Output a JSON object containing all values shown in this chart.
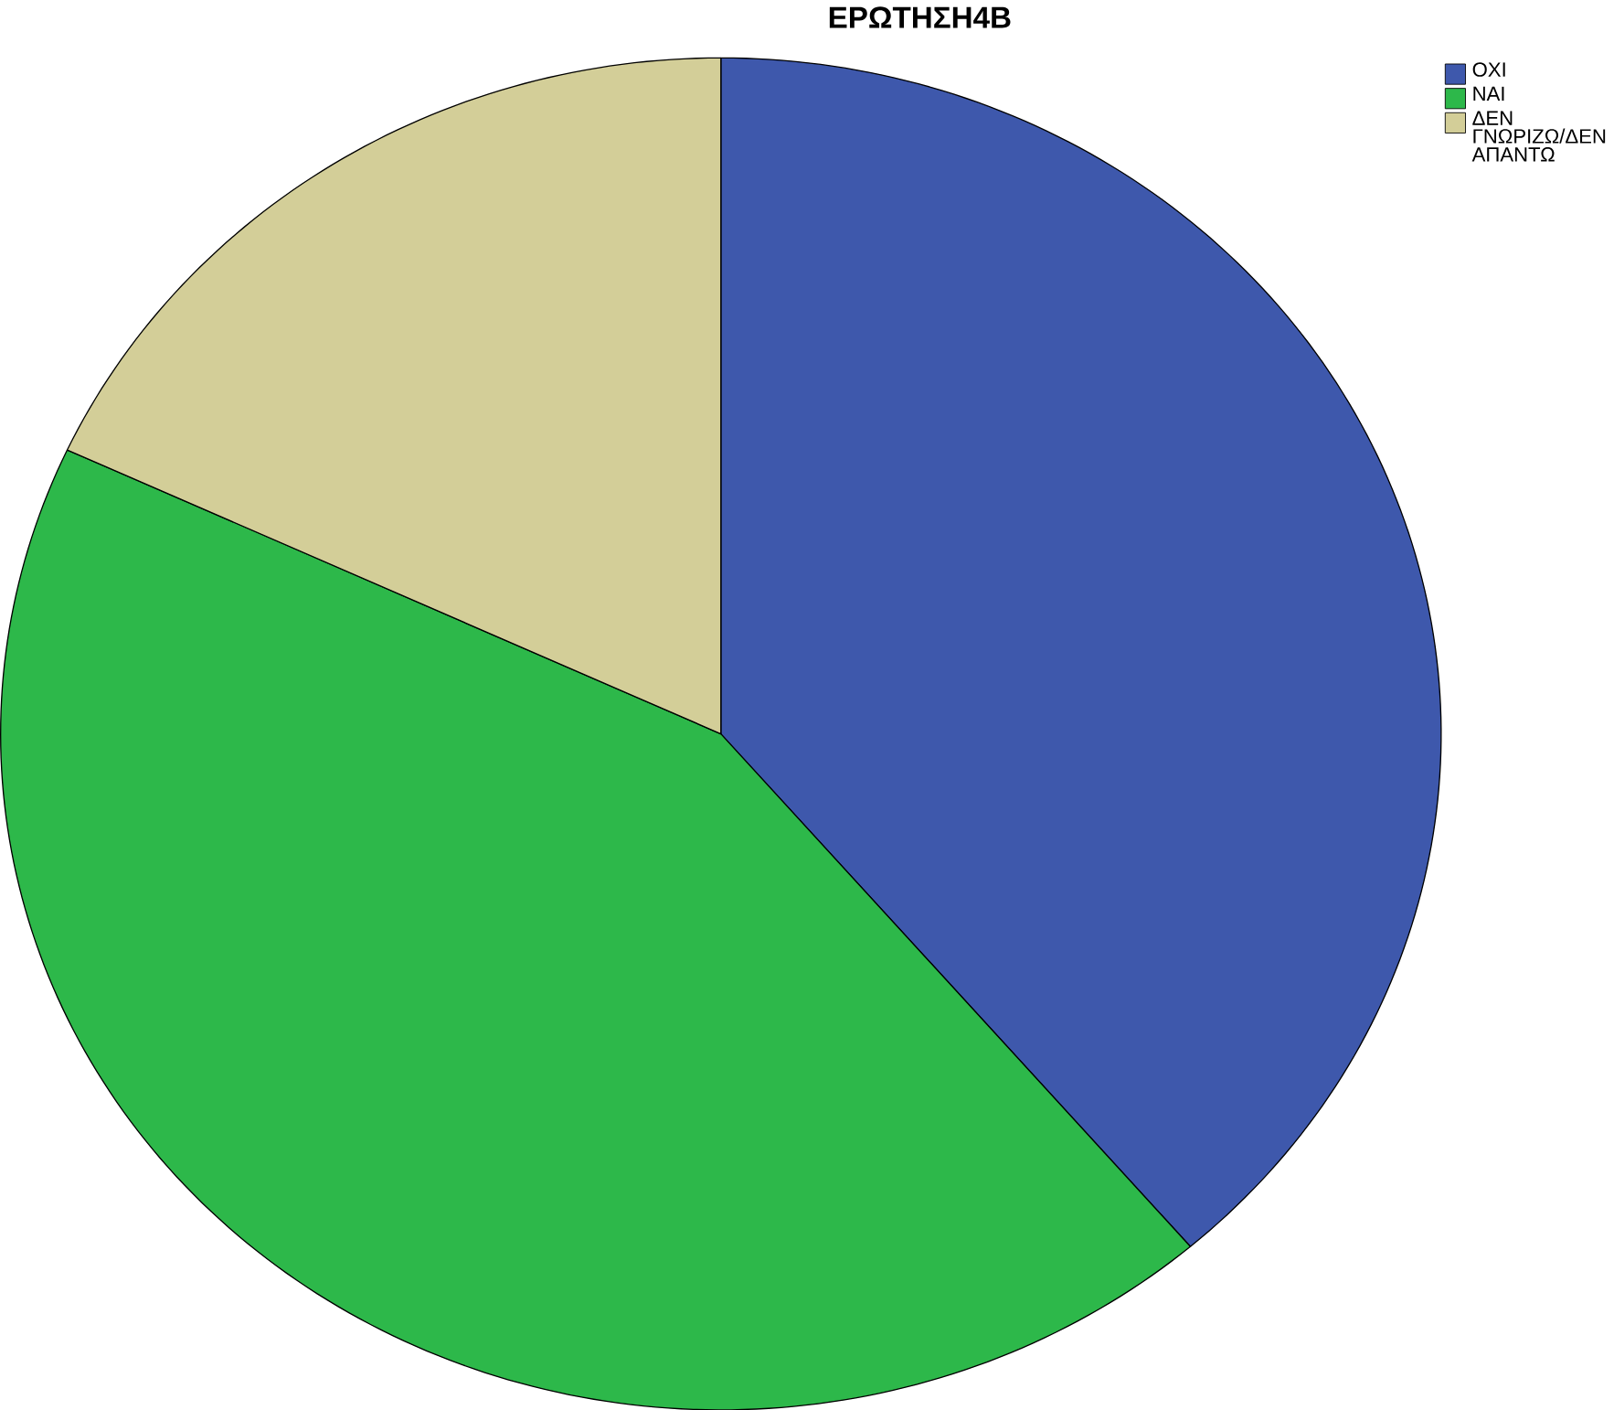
{
  "chart_data": {
    "type": "pie",
    "title": "ΕΡΩΤΗΣΗ4Β",
    "categories": [
      "ΟΧΙ",
      "ΝΑΙ",
      "ΔΕΝ ΓΝΩΡΙΖΩ/ΔΕΝ ΑΠΑΝΤΩ"
    ],
    "values": [
      38.7,
      43.2,
      18.1
    ],
    "colors": [
      "#3e58ac",
      "#2db84a",
      "#d3ce98"
    ],
    "legend": "top right"
  }
}
